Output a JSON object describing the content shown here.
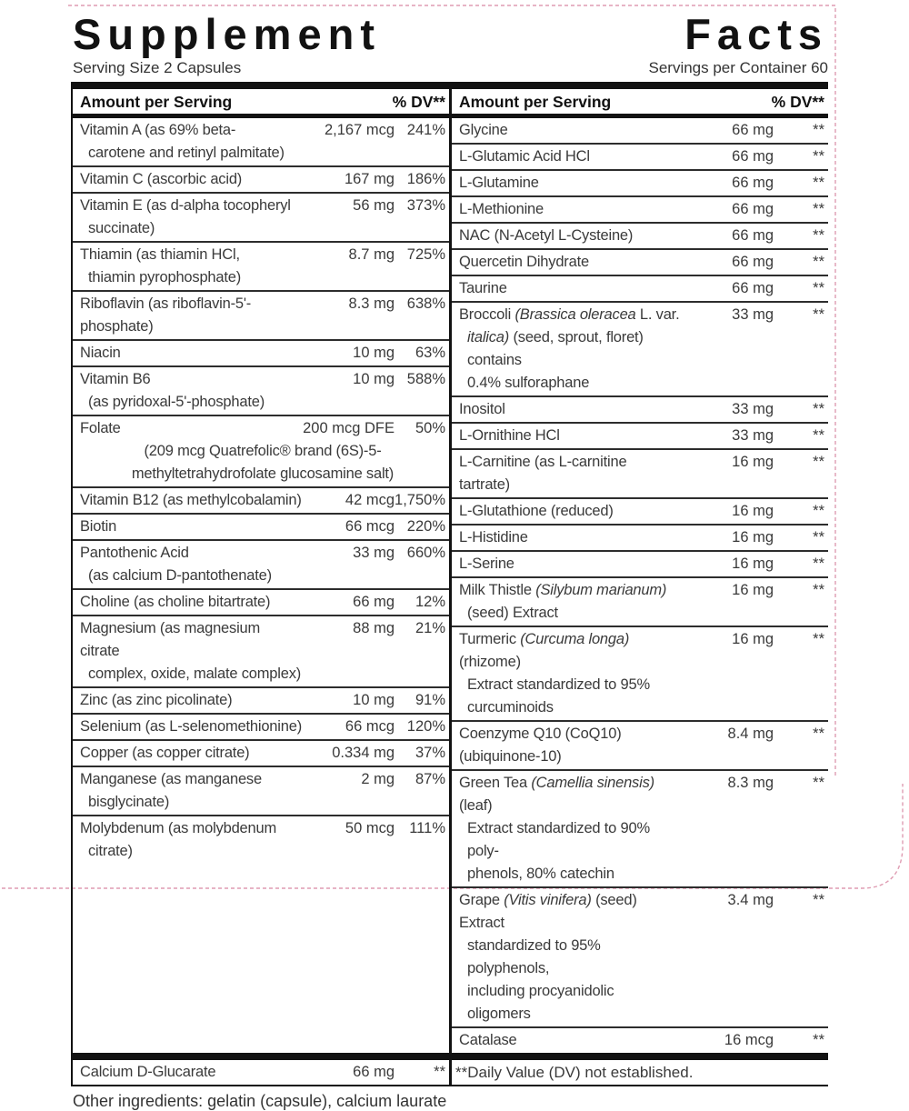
{
  "title": "Supplement Facts",
  "serving_size": "Serving Size 2 Capsules",
  "servings_per_container": "Servings per Container 60",
  "columns": {
    "header_amount": "Amount per Serving",
    "header_dv": "% DV**"
  },
  "left_rows": [
    {
      "name_lines": [
        [
          "Vitamin A (as 69% beta-"
        ],
        [
          "carotene and retinyl palmitate)"
        ]
      ],
      "amount": "2,167 mcg",
      "dv": "241%"
    },
    {
      "name_lines": [
        [
          "Vitamin C (ascorbic acid)"
        ]
      ],
      "amount": "167 mg",
      "dv": "186%"
    },
    {
      "name_lines": [
        [
          "Vitamin E (as d-alpha tocopheryl"
        ],
        [
          "succinate)"
        ]
      ],
      "amount": "56 mg",
      "dv": "373%"
    },
    {
      "name_lines": [
        [
          "Thiamin (as thiamin HCl,"
        ],
        [
          "thiamin pyrophosphate)"
        ]
      ],
      "amount": "8.7 mg",
      "dv": "725%"
    },
    {
      "name_lines": [
        [
          "Riboflavin (as riboflavin-5'-phosphate)"
        ]
      ],
      "amount": "8.3 mg",
      "dv": "638%"
    },
    {
      "name_lines": [
        [
          "Niacin"
        ]
      ],
      "amount": "10 mg",
      "dv": "63%"
    },
    {
      "name_lines": [
        [
          "Vitamin B6"
        ],
        [
          "(as pyridoxal-5'-phosphate)"
        ]
      ],
      "amount": "10 mg",
      "dv": "588%"
    },
    {
      "name_lines": [
        [
          "Folate"
        ]
      ],
      "amount": "200 mcg DFE",
      "dv": "50%",
      "note_lines": [
        "(209 mcg Quatrefolic® brand (6S)-5-",
        "methyltetrahydrofolate glucosamine salt)"
      ]
    },
    {
      "name_lines": [
        [
          "Vitamin B12 (as methylcobalamin)"
        ]
      ],
      "amount": "42 mcg",
      "dv": "1,750%"
    },
    {
      "name_lines": [
        [
          "Biotin"
        ]
      ],
      "amount": "66 mcg",
      "dv": "220%"
    },
    {
      "name_lines": [
        [
          "Pantothenic Acid"
        ],
        [
          "(as calcium D-pantothenate)"
        ]
      ],
      "amount": "33 mg",
      "dv": "660%"
    },
    {
      "name_lines": [
        [
          "Choline (as choline bitartrate)"
        ]
      ],
      "amount": "66 mg",
      "dv": "12%"
    },
    {
      "name_lines": [
        [
          "Magnesium (as magnesium citrate"
        ],
        [
          "complex, oxide, malate complex)"
        ]
      ],
      "amount": "88 mg",
      "dv": "21%"
    },
    {
      "name_lines": [
        [
          "Zinc (as zinc picolinate)"
        ]
      ],
      "amount": "10 mg",
      "dv": "91%"
    },
    {
      "name_lines": [
        [
          "Selenium (as L-selenomethionine)"
        ]
      ],
      "amount": "66 mcg",
      "dv": "120%"
    },
    {
      "name_lines": [
        [
          "Copper (as copper citrate)"
        ]
      ],
      "amount": "0.334 mg",
      "dv": "37%"
    },
    {
      "name_lines": [
        [
          "Manganese (as manganese"
        ],
        [
          "bisglycinate)"
        ]
      ],
      "amount": "2 mg",
      "dv": "87%"
    },
    {
      "name_lines": [
        [
          "Molybdenum (as molybdenum"
        ],
        [
          "citrate)"
        ]
      ],
      "amount": "50 mcg",
      "dv": "111%"
    }
  ],
  "left_bottom_row": {
    "name_lines": [
      [
        "Calcium D-Glucarate"
      ]
    ],
    "amount": "66 mg",
    "dv": "**"
  },
  "right_rows": [
    {
      "name_lines": [
        [
          "Glycine"
        ]
      ],
      "amount": "66 mg",
      "dv": "**"
    },
    {
      "name_lines": [
        [
          "L-Glutamic Acid HCl"
        ]
      ],
      "amount": "66 mg",
      "dv": "**"
    },
    {
      "name_lines": [
        [
          "L-Glutamine"
        ]
      ],
      "amount": "66 mg",
      "dv": "**"
    },
    {
      "name_lines": [
        [
          "L-Methionine"
        ]
      ],
      "amount": "66 mg",
      "dv": "**"
    },
    {
      "name_lines": [
        [
          "NAC (N-Acetyl L-Cysteine)"
        ]
      ],
      "amount": "66 mg",
      "dv": "**"
    },
    {
      "name_lines": [
        [
          "Quercetin Dihydrate"
        ]
      ],
      "amount": "66 mg",
      "dv": "**"
    },
    {
      "name_lines": [
        [
          "Taurine"
        ]
      ],
      "amount": "66 mg",
      "dv": "**"
    },
    {
      "name_lines": [
        [
          {
            "t": "Broccoli ",
            "i": false
          },
          {
            "t": "(Brassica oleracea",
            "i": true
          },
          {
            "t": " L. var.",
            "i": false
          }
        ],
        [
          {
            "t": "italica)",
            "i": true
          },
          {
            "t": " (seed, sprout, floret) contains",
            "i": false
          }
        ],
        [
          "0.4% sulforaphane"
        ]
      ],
      "amount": "33 mg",
      "dv": "**"
    },
    {
      "name_lines": [
        [
          "Inositol"
        ]
      ],
      "amount": "33 mg",
      "dv": "**"
    },
    {
      "name_lines": [
        [
          "L-Ornithine HCl"
        ]
      ],
      "amount": "33 mg",
      "dv": "**"
    },
    {
      "name_lines": [
        [
          "L-Carnitine (as L-carnitine tartrate)"
        ]
      ],
      "amount": "16 mg",
      "dv": "**"
    },
    {
      "name_lines": [
        [
          "L-Glutathione (reduced)"
        ]
      ],
      "amount": "16 mg",
      "dv": "**"
    },
    {
      "name_lines": [
        [
          "L-Histidine"
        ]
      ],
      "amount": "16 mg",
      "dv": "**"
    },
    {
      "name_lines": [
        [
          "L-Serine"
        ]
      ],
      "amount": "16 mg",
      "dv": "**"
    },
    {
      "name_lines": [
        [
          {
            "t": "Milk Thistle ",
            "i": false
          },
          {
            "t": "(Silybum marianum)",
            "i": true
          }
        ],
        [
          "(seed) Extract"
        ]
      ],
      "amount": "16 mg",
      "dv": "**"
    },
    {
      "name_lines": [
        [
          {
            "t": "Turmeric ",
            "i": false
          },
          {
            "t": "(Curcuma longa)",
            "i": true
          },
          {
            "t": " (rhizome)",
            "i": false
          }
        ],
        [
          "Extract standardized to 95%"
        ],
        [
          "curcuminoids"
        ]
      ],
      "amount": "16 mg",
      "dv": "**"
    },
    {
      "name_lines": [
        [
          "Coenzyme Q10 (CoQ10) (ubiquinone-10)"
        ]
      ],
      "amount": "8.4 mg",
      "dv": "**"
    },
    {
      "name_lines": [
        [
          {
            "t": "Green Tea ",
            "i": false
          },
          {
            "t": "(Camellia sinensis)",
            "i": true
          },
          {
            "t": " (leaf)",
            "i": false
          }
        ],
        [
          "Extract standardized to 90% poly-"
        ],
        [
          "phenols, 80% catechin"
        ]
      ],
      "amount": "8.3 mg",
      "dv": "**"
    },
    {
      "name_lines": [
        [
          {
            "t": "Grape ",
            "i": false
          },
          {
            "t": "(Vitis vinifera)",
            "i": true
          },
          {
            "t": " (seed) Extract",
            "i": false
          }
        ],
        [
          "standardized to 95% polyphenols,"
        ],
        [
          "including procyanidolic oligomers"
        ]
      ],
      "amount": "3.4 mg",
      "dv": "**"
    },
    {
      "name_lines": [
        [
          "Catalase"
        ]
      ],
      "amount": "16 mcg",
      "dv": "**"
    }
  ],
  "right_bottom_note": "**Daily Value (DV) not established.",
  "other_ingredients": "Other ingredients: gelatin (capsule), calcium laurate",
  "colors": {
    "ink": "#121212",
    "text": "#3a3a3a",
    "rule": "#2d2d2d",
    "diecut": "#df9cb2"
  }
}
